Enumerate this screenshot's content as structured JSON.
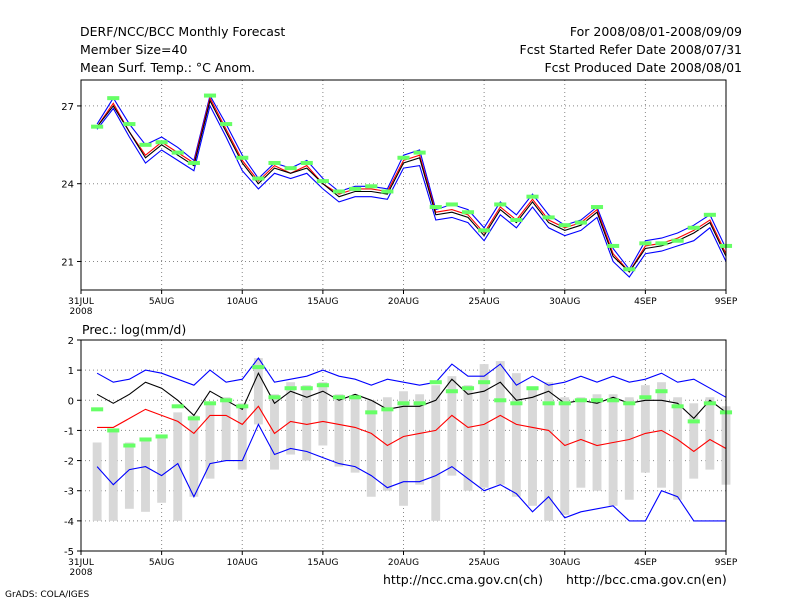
{
  "header": {
    "title": "DERF/NCC/BCC Monthly Forecast",
    "member_size": "Member Size=40",
    "variable": "Mean Surf. Temp.: °C Anom.",
    "period": "For 2008/08/01-2008/09/09",
    "refer_date": "Fcst Started Refer Date 2008/07/31",
    "produced_date": "Fcst Produced Date 2008/08/01"
  },
  "footer": {
    "credit": "GrADS: COLA/IGES",
    "url_ch": "http://ncc.cma.gov.cn(ch)",
    "url_en": "http://bcc.cma.gov.cn(en)"
  },
  "colors": {
    "ens_upper": "#0000ff",
    "ens_lower": "#0000ff",
    "ens_mid": "#ff0000",
    "ens_mean": "#000000",
    "marker": "#66ff66",
    "bar": "#d8d8d8",
    "grid": "#888888"
  },
  "chart_data": [
    {
      "type": "line",
      "title": "Mean Surf. Temp.: °C Anom.",
      "x_ticks": [
        "31JUL",
        "5AUG",
        "10AUG",
        "15AUG",
        "20AUG",
        "25AUG",
        "30AUG",
        "4SEP",
        "9SEP"
      ],
      "x_tick_days": [
        0,
        5,
        10,
        15,
        20,
        25,
        30,
        35,
        40
      ],
      "x_sub": "2008",
      "ylim": [
        19.9,
        28.0
      ],
      "y_ticks": [
        21,
        24,
        27
      ],
      "days": [
        1,
        2,
        3,
        4,
        5,
        6,
        7,
        8,
        9,
        10,
        11,
        12,
        13,
        14,
        15,
        16,
        17,
        18,
        19,
        20,
        21,
        22,
        23,
        24,
        25,
        26,
        27,
        28,
        29,
        30,
        31,
        32,
        33,
        34,
        35,
        36,
        37,
        38,
        39,
        40
      ],
      "series": [
        {
          "name": "upper",
          "color_key": "ens_upper",
          "values": [
            26.3,
            27.3,
            26.3,
            25.5,
            25.8,
            25.4,
            24.9,
            27.4,
            26.3,
            25.1,
            24.2,
            24.8,
            24.6,
            24.9,
            24.2,
            23.7,
            23.9,
            23.9,
            23.8,
            25.1,
            25.3,
            23.0,
            23.2,
            23.0,
            22.3,
            23.3,
            22.8,
            23.6,
            22.8,
            22.4,
            22.6,
            23.1,
            21.5,
            20.7,
            21.8,
            21.9,
            22.1,
            22.4,
            22.8,
            21.5
          ]
        },
        {
          "name": "mid",
          "color_key": "ens_mid",
          "values": [
            26.2,
            27.1,
            26.0,
            25.1,
            25.6,
            25.2,
            24.8,
            27.3,
            26.1,
            24.9,
            24.1,
            24.7,
            24.4,
            24.7,
            24.0,
            23.6,
            23.8,
            23.8,
            23.7,
            24.9,
            25.1,
            22.9,
            23.0,
            22.8,
            22.1,
            23.1,
            22.6,
            23.4,
            22.6,
            22.3,
            22.5,
            23.0,
            21.3,
            20.6,
            21.6,
            21.7,
            21.9,
            22.2,
            22.6,
            21.3
          ]
        },
        {
          "name": "mean",
          "color_key": "ens_mean",
          "values": [
            26.2,
            27.0,
            26.0,
            25.0,
            25.5,
            25.1,
            24.7,
            27.2,
            26.0,
            24.8,
            24.0,
            24.6,
            24.4,
            24.6,
            24.0,
            23.5,
            23.7,
            23.7,
            23.6,
            24.8,
            25.0,
            22.8,
            22.9,
            22.7,
            22.0,
            23.0,
            22.5,
            23.3,
            22.5,
            22.2,
            22.4,
            22.9,
            21.2,
            20.6,
            21.5,
            21.6,
            21.8,
            22.1,
            22.5,
            21.2
          ]
        },
        {
          "name": "lower",
          "color_key": "ens_lower",
          "values": [
            26.1,
            26.9,
            25.8,
            24.8,
            25.3,
            24.9,
            24.5,
            27.0,
            25.8,
            24.5,
            23.8,
            24.4,
            24.2,
            24.4,
            23.8,
            23.3,
            23.5,
            23.5,
            23.4,
            24.6,
            24.7,
            22.6,
            22.7,
            22.5,
            21.8,
            22.8,
            22.3,
            23.1,
            22.3,
            22.0,
            22.2,
            22.7,
            21.0,
            20.4,
            21.3,
            21.4,
            21.6,
            21.8,
            22.3,
            21.0
          ]
        }
      ],
      "markers": [
        26.2,
        27.3,
        26.3,
        25.5,
        25.6,
        25.2,
        24.8,
        27.4,
        26.3,
        25.0,
        24.2,
        24.8,
        24.6,
        24.8,
        24.1,
        23.7,
        23.8,
        23.9,
        23.7,
        25.0,
        25.2,
        23.1,
        23.2,
        22.9,
        22.2,
        23.2,
        22.6,
        23.5,
        22.7,
        22.4,
        22.5,
        23.1,
        21.6,
        20.7,
        21.7,
        21.7,
        21.8,
        22.3,
        22.8,
        21.6
      ]
    },
    {
      "type": "line",
      "title": "Prec.: log(mm/d)",
      "x_ticks": [
        "31JUL",
        "5AUG",
        "10AUG",
        "15AUG",
        "20AUG",
        "25AUG",
        "30AUG",
        "4SEP",
        "9SEP"
      ],
      "x_tick_days": [
        0,
        5,
        10,
        15,
        20,
        25,
        30,
        35,
        40
      ],
      "x_sub": "2008",
      "ylim": [
        -5,
        2
      ],
      "y_ticks": [
        -5,
        -4,
        -3,
        -2,
        -1,
        0,
        1,
        2
      ],
      "days": [
        1,
        2,
        3,
        4,
        5,
        6,
        7,
        8,
        9,
        10,
        11,
        12,
        13,
        14,
        15,
        16,
        17,
        18,
        19,
        20,
        21,
        22,
        23,
        24,
        25,
        26,
        27,
        28,
        29,
        30,
        31,
        32,
        33,
        34,
        35,
        36,
        37,
        38,
        39,
        40
      ],
      "bars": [
        {
          "day": 1,
          "low": -4.0,
          "high": -1.4
        },
        {
          "day": 2,
          "low": -4.0,
          "high": -1.0
        },
        {
          "day": 3,
          "low": -3.6,
          "high": -1.4
        },
        {
          "day": 4,
          "low": -3.7,
          "high": -1.3
        },
        {
          "day": 5,
          "low": -3.4,
          "high": -1.2
        },
        {
          "day": 6,
          "low": -4.0,
          "high": -0.4
        },
        {
          "day": 7,
          "low": -3.2,
          "high": -0.5
        },
        {
          "day": 8,
          "low": -2.6,
          "high": -0.1
        },
        {
          "day": 9,
          "low": -2.0,
          "high": 0.1
        },
        {
          "day": 10,
          "low": -2.3,
          "high": -0.1
        },
        {
          "day": 11,
          "low": -0.8,
          "high": 1.4
        },
        {
          "day": 12,
          "low": -2.3,
          "high": 0.2
        },
        {
          "day": 13,
          "low": -1.8,
          "high": 0.6
        },
        {
          "day": 14,
          "low": -2.0,
          "high": 0.5
        },
        {
          "day": 15,
          "low": -1.5,
          "high": 0.6
        },
        {
          "day": 16,
          "low": -2.2,
          "high": 0.2
        },
        {
          "day": 17,
          "low": -2.4,
          "high": 0.1
        },
        {
          "day": 18,
          "low": -3.2,
          "high": 0.0
        },
        {
          "day": 19,
          "low": -3.0,
          "high": 0.1
        },
        {
          "day": 20,
          "low": -3.5,
          "high": 0.3
        },
        {
          "day": 21,
          "low": -2.8,
          "high": 0.2
        },
        {
          "day": 22,
          "low": -4.0,
          "high": 0.5
        },
        {
          "day": 23,
          "low": -2.5,
          "high": 0.8
        },
        {
          "day": 24,
          "low": -3.0,
          "high": 0.5
        },
        {
          "day": 25,
          "low": -2.9,
          "high": 1.2
        },
        {
          "day": 26,
          "low": -2.8,
          "high": 1.3
        },
        {
          "day": 27,
          "low": -3.2,
          "high": 0.9
        },
        {
          "day": 28,
          "low": -3.5,
          "high": 0.4
        },
        {
          "day": 29,
          "low": -4.0,
          "high": 0.6
        },
        {
          "day": 30,
          "low": -3.8,
          "high": 0.1
        },
        {
          "day": 31,
          "low": -2.9,
          "high": 0.1
        },
        {
          "day": 32,
          "low": -3.0,
          "high": 0.2
        },
        {
          "day": 33,
          "low": -3.5,
          "high": 0.2
        },
        {
          "day": 34,
          "low": -3.3,
          "high": 0.1
        },
        {
          "day": 35,
          "low": -2.4,
          "high": 0.5
        },
        {
          "day": 36,
          "low": -2.9,
          "high": 0.6
        },
        {
          "day": 37,
          "low": -3.3,
          "high": 0.1
        },
        {
          "day": 38,
          "low": -2.6,
          "high": -0.1
        },
        {
          "day": 39,
          "low": -2.3,
          "high": 0.1
        },
        {
          "day": 40,
          "low": -2.8,
          "high": -0.2
        }
      ],
      "markers": [
        -0.3,
        -1.0,
        -1.5,
        -1.3,
        -1.2,
        -0.2,
        -0.6,
        -0.1,
        0.0,
        -0.2,
        1.1,
        0.1,
        0.4,
        0.4,
        0.5,
        0.1,
        0.1,
        -0.4,
        -0.3,
        -0.1,
        -0.1,
        0.6,
        0.3,
        0.4,
        0.6,
        0.0,
        -0.1,
        0.4,
        -0.1,
        -0.1,
        0.0,
        0.0,
        0.0,
        -0.1,
        0.1,
        0.3,
        -0.2,
        -0.7,
        -0.1,
        -0.4
      ],
      "series": [
        {
          "name": "upper",
          "color_key": "ens_upper",
          "values": [
            0.9,
            0.6,
            0.7,
            1.0,
            0.9,
            0.7,
            0.5,
            1.0,
            0.6,
            0.7,
            1.4,
            0.6,
            0.7,
            0.8,
            1.0,
            0.8,
            0.7,
            0.5,
            0.7,
            0.6,
            0.5,
            0.6,
            1.2,
            0.8,
            0.8,
            1.2,
            0.5,
            0.8,
            0.5,
            0.6,
            0.8,
            0.6,
            0.8,
            0.6,
            0.7,
            0.9,
            0.6,
            0.7,
            0.4,
            0.1
          ]
        },
        {
          "name": "mean",
          "color_key": "ens_mean",
          "values": [
            0.2,
            -0.1,
            0.2,
            0.6,
            0.4,
            0.0,
            -0.5,
            0.3,
            0.0,
            -0.3,
            0.9,
            -0.1,
            0.3,
            0.1,
            0.3,
            0.0,
            0.2,
            0.0,
            -0.3,
            -0.2,
            -0.2,
            0.0,
            0.7,
            0.2,
            0.3,
            0.6,
            0.0,
            0.1,
            0.3,
            -0.1,
            0.0,
            -0.1,
            0.1,
            -0.1,
            0.0,
            0.0,
            -0.1,
            -0.6,
            0.0,
            -0.4
          ]
        },
        {
          "name": "mid",
          "color_key": "ens_mid",
          "values": [
            -0.9,
            -0.9,
            -0.6,
            -0.3,
            -0.5,
            -0.7,
            -1.1,
            -0.5,
            -0.5,
            -0.8,
            -0.2,
            -1.1,
            -0.7,
            -0.8,
            -0.7,
            -0.8,
            -0.9,
            -1.1,
            -1.5,
            -1.2,
            -1.1,
            -1.0,
            -0.5,
            -0.9,
            -0.8,
            -0.5,
            -0.8,
            -0.9,
            -1.0,
            -1.5,
            -1.3,
            -1.5,
            -1.4,
            -1.3,
            -1.1,
            -1.0,
            -1.3,
            -1.7,
            -1.3,
            -1.6
          ]
        },
        {
          "name": "lower",
          "color_key": "ens_lower",
          "values": [
            -2.2,
            -2.8,
            -2.3,
            -2.2,
            -2.5,
            -2.1,
            -3.2,
            -2.1,
            -2.0,
            -2.0,
            -0.8,
            -1.8,
            -1.6,
            -1.7,
            -1.9,
            -2.1,
            -2.2,
            -2.5,
            -2.9,
            -2.7,
            -2.7,
            -2.5,
            -2.2,
            -2.6,
            -3.0,
            -2.8,
            -3.1,
            -3.7,
            -3.2,
            -3.9,
            -3.7,
            -3.6,
            -3.5,
            -4.0,
            -4.0,
            -3.0,
            -3.2,
            -4.0,
            -4.0,
            -4.0
          ]
        }
      ]
    }
  ]
}
